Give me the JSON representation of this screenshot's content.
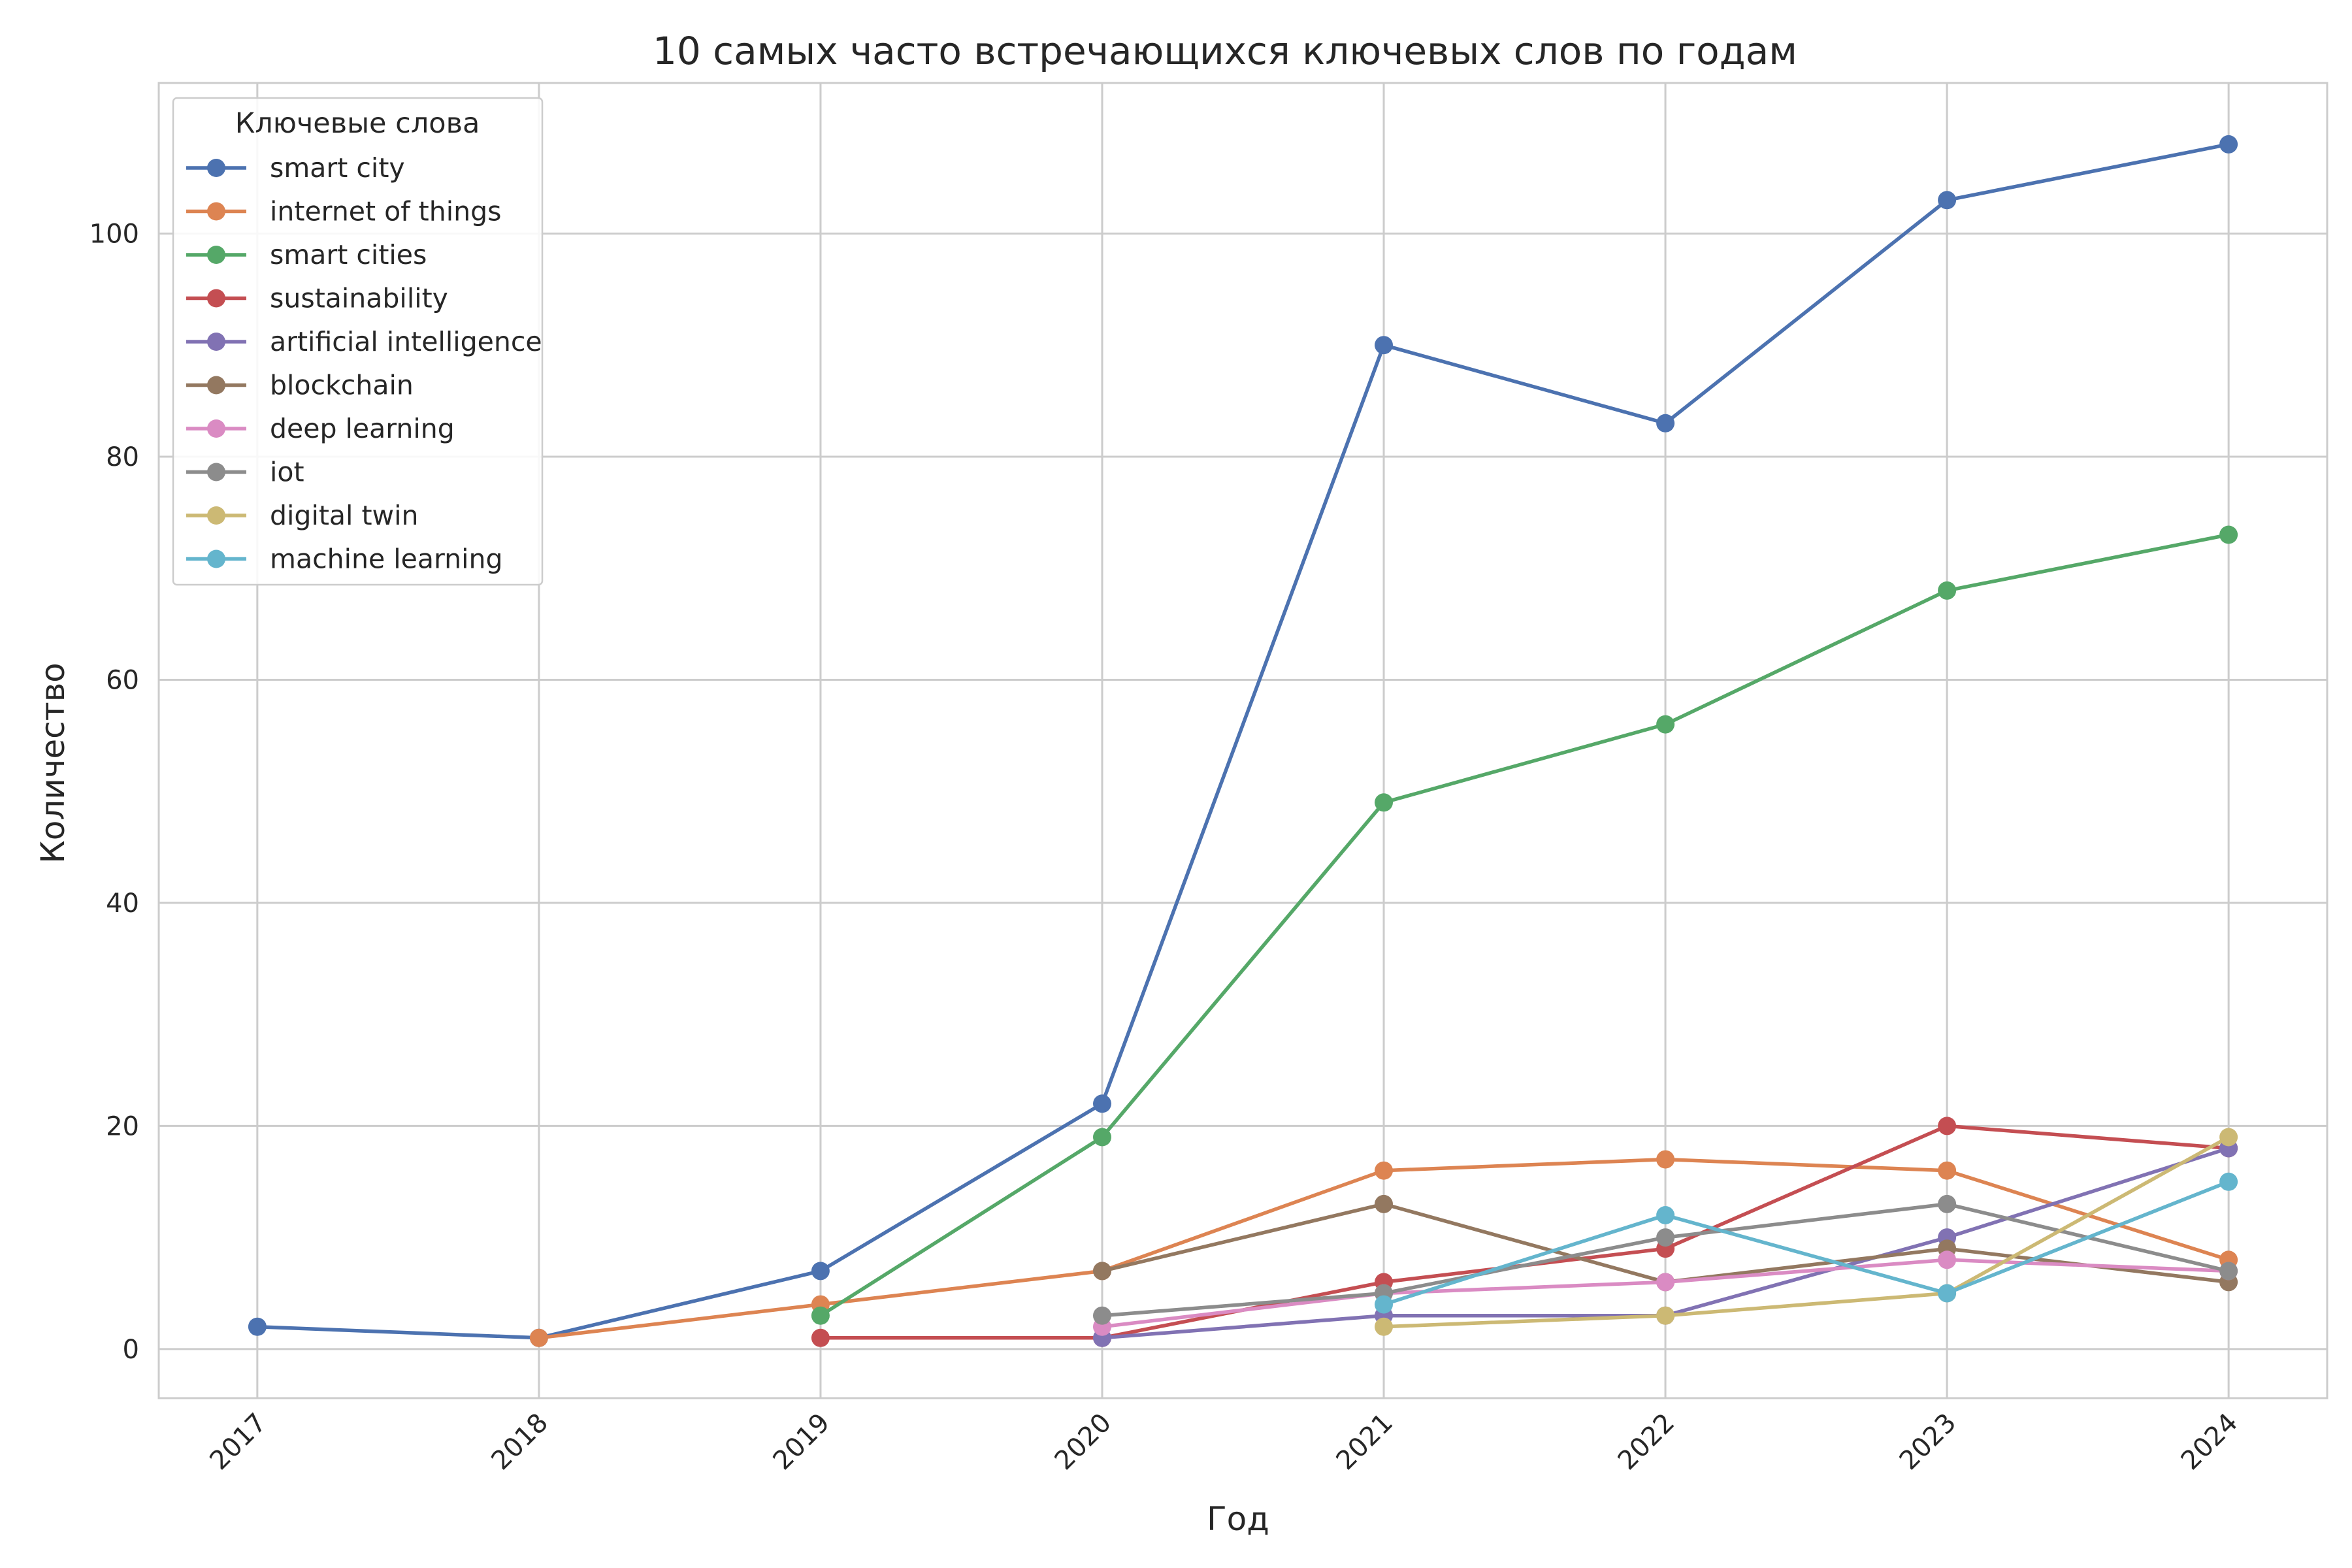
{
  "chart_data": {
    "type": "line",
    "title": "10 самых часто встречающихся ключевых слов по годам",
    "xlabel": "Год",
    "ylabel": "Количество",
    "x": [
      2017,
      2018,
      2019,
      2020,
      2021,
      2022,
      2023,
      2024
    ],
    "xlim": [
      2016.65,
      2024.35
    ],
    "ylim": [
      -4.4,
      113.5
    ],
    "yticks": [
      0,
      20,
      40,
      60,
      80,
      100
    ],
    "grid": true,
    "legend": {
      "title": "Ключевые слова",
      "placement": "top-left"
    },
    "series": [
      {
        "name": "smart city",
        "color": "#4c72b0",
        "values": [
          2,
          1,
          7,
          22,
          90,
          83,
          103,
          108
        ]
      },
      {
        "name": "internet of things",
        "color": "#dd8452",
        "values": [
          null,
          1,
          4,
          7,
          16,
          17,
          16,
          8
        ]
      },
      {
        "name": "smart cities",
        "color": "#55a868",
        "values": [
          null,
          null,
          3,
          19,
          49,
          56,
          68,
          73
        ]
      },
      {
        "name": "sustainability",
        "color": "#c44e52",
        "values": [
          null,
          null,
          1,
          1,
          6,
          9,
          20,
          18
        ]
      },
      {
        "name": "artificial intelligence",
        "color": "#8172b3",
        "values": [
          null,
          null,
          null,
          1,
          3,
          3,
          10,
          18
        ]
      },
      {
        "name": "blockchain",
        "color": "#937860",
        "values": [
          null,
          null,
          null,
          7,
          13,
          6,
          9,
          6
        ]
      },
      {
        "name": "deep learning",
        "color": "#da8bc3",
        "values": [
          null,
          null,
          null,
          2,
          5,
          6,
          8,
          7
        ]
      },
      {
        "name": "iot",
        "color": "#8c8c8c",
        "values": [
          null,
          null,
          null,
          3,
          5,
          10,
          13,
          7
        ]
      },
      {
        "name": "digital twin",
        "color": "#ccb974",
        "values": [
          null,
          null,
          null,
          null,
          2,
          3,
          5,
          19
        ]
      },
      {
        "name": "machine learning",
        "color": "#64b5cd",
        "values": [
          null,
          null,
          null,
          null,
          4,
          12,
          5,
          15
        ]
      }
    ]
  }
}
